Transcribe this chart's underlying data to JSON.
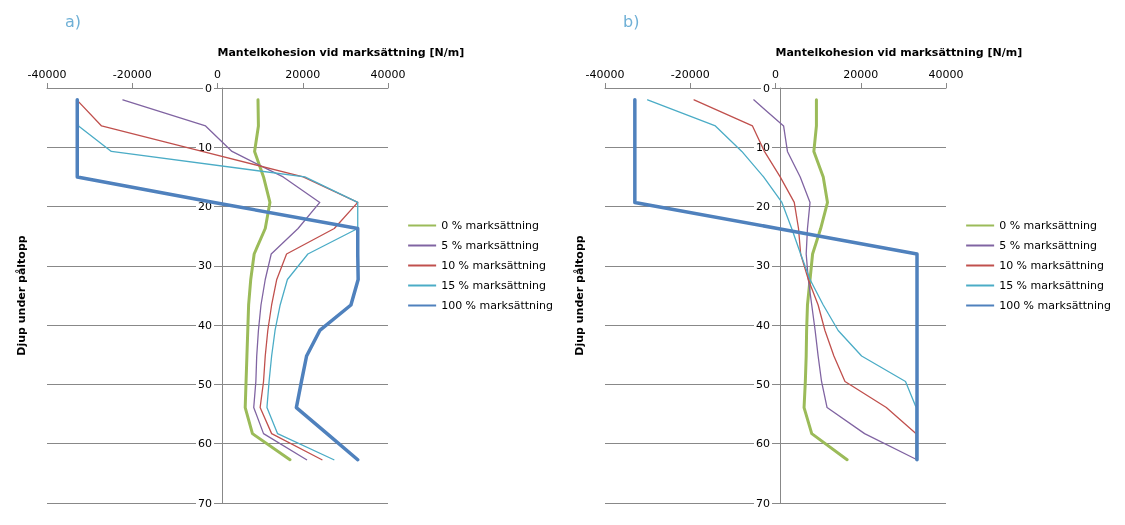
{
  "chart_data": [
    {
      "type": "line",
      "title": "a)",
      "xlabel": "Mantelkohesion vid marksättning [N/m]",
      "ylabel": "Djup under påltopp",
      "orientation": "horizontal",
      "x": [
        2,
        6.4,
        10.7,
        15,
        19.3,
        23.7,
        28,
        32.3,
        36.6,
        40.9,
        45.2,
        49.5,
        53.9,
        58.3,
        62.7
      ],
      "series": [
        {
          "name": "0 % marksättning",
          "color": "#9bbb59",
          "values": [
            9500,
            9600,
            8700,
            10800,
            12300,
            11200,
            8600,
            7800,
            7300,
            7100,
            6900,
            6700,
            6500,
            8200,
            17000
          ]
        },
        {
          "name": "5 % marksättning",
          "color": "#8064a2",
          "values": [
            -22200,
            -2800,
            3400,
            15400,
            24000,
            18900,
            12600,
            11200,
            10200,
            9600,
            9200,
            9000,
            8500,
            10800,
            20900
          ]
        },
        {
          "name": "10 % marksättning",
          "color": "#c0504d",
          "values": [
            -33000,
            -27200,
            -3600,
            20100,
            32900,
            27400,
            16200,
            13900,
            12700,
            11800,
            11200,
            10800,
            10000,
            12700,
            24500
          ]
        },
        {
          "name": "15 % marksättning",
          "color": "#4bacc6",
          "values": [
            -33000,
            -32600,
            -24900,
            20500,
            32900,
            32900,
            21200,
            16400,
            14700,
            13500,
            12700,
            12100,
            11600,
            14100,
            27300
          ]
        },
        {
          "name": "100 % marksättning",
          "color": "#4f81bd",
          "values": [
            -32900,
            -32900,
            -32900,
            -32900,
            -800,
            32900,
            32900,
            33000,
            31300,
            24000,
            20900,
            19700,
            18500,
            25700,
            32900
          ]
        }
      ],
      "xlim": [
        -40000,
        40000
      ],
      "xticks": [
        -40000,
        -20000,
        0,
        20000,
        40000
      ],
      "ylim": [
        70,
        0
      ],
      "yticks": [
        0,
        10,
        20,
        30,
        40,
        50,
        60,
        70
      ],
      "grid": "y",
      "legend": "right"
    },
    {
      "type": "line",
      "title": "b)",
      "xlabel": "Mantelkohesion vid marksättning [N/m]",
      "ylabel": "Djup under påltopp",
      "orientation": "horizontal",
      "x": [
        2,
        6.4,
        10.7,
        15,
        19.3,
        23.7,
        28,
        32.3,
        36.6,
        40.9,
        45.2,
        49.5,
        53.9,
        58.3,
        62.7
      ],
      "series": [
        {
          "name": "0 % marksättning",
          "color": "#9bbb59",
          "values": [
            9600,
            9600,
            9000,
            11200,
            12200,
            10600,
            8700,
            8100,
            7500,
            7300,
            7200,
            7000,
            6700,
            8500,
            16800
          ]
        },
        {
          "name": "5 % marksättning",
          "color": "#8064a2",
          "values": [
            -5100,
            1900,
            2800,
            5800,
            8100,
            7500,
            7200,
            7700,
            8500,
            9300,
            10000,
            10800,
            12100,
            20900,
            33200
          ]
        },
        {
          "name": "10 % marksättning",
          "color": "#c0504d",
          "values": [
            -19100,
            -5400,
            -2600,
            1100,
            4400,
            5400,
            5900,
            7700,
            10000,
            11600,
            13700,
            16300,
            26000,
            33000,
            33000
          ]
        },
        {
          "name": "15 % marksättning",
          "color": "#4bacc6",
          "values": [
            -30000,
            -14100,
            -7900,
            -2800,
            1500,
            3800,
            5900,
            8100,
            11200,
            14700,
            20200,
            30500,
            33000,
            33000,
            33000
          ]
        },
        {
          "name": "100 % marksättning",
          "color": "#4f81bd",
          "values": [
            -33000,
            -33000,
            -33000,
            -33000,
            -33000,
            500,
            33200,
            33200,
            33200,
            33200,
            33200,
            33200,
            33200,
            33200,
            33200
          ]
        }
      ],
      "xlim": [
        -40000,
        40000
      ],
      "xticks": [
        -40000,
        -20000,
        0,
        20000,
        40000
      ],
      "ylim": [
        70,
        0
      ],
      "yticks": [
        0,
        10,
        20,
        30,
        40,
        50,
        60,
        70
      ],
      "grid": "y",
      "legend": "right"
    }
  ]
}
